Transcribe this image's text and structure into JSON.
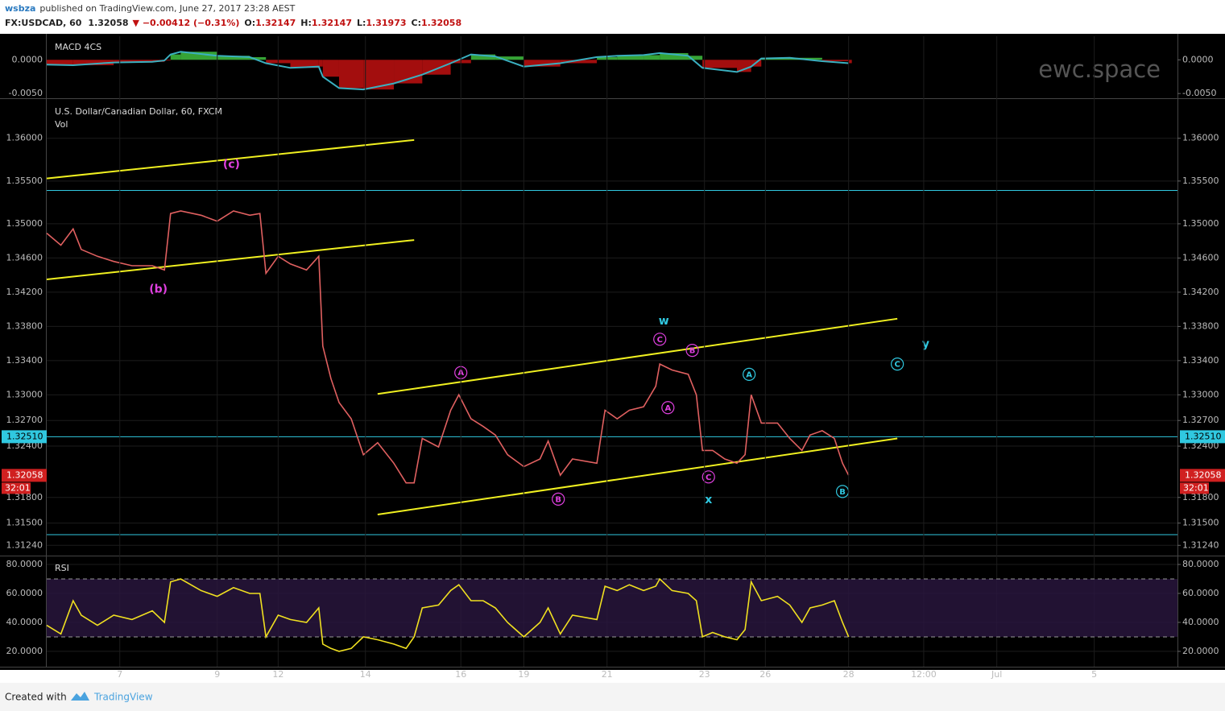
{
  "header": {
    "author": "wsbza",
    "published": "published on TradingView.com, June 27, 2017 23:28 AEST",
    "symbol": "FX:USDCAD, 60",
    "price": "1.32058",
    "change": "▼ −0.00412 (−0.31%)",
    "ohlc": [
      {
        "label": "O:",
        "value": "1.32147"
      },
      {
        "label": "H:",
        "value": "1.32147"
      },
      {
        "label": "L:",
        "value": "1.31973"
      },
      {
        "label": "C:",
        "value": "1.32058"
      }
    ]
  },
  "watermark": "ewc.space",
  "footer": {
    "text": "Created with",
    "brand": "TradingView"
  },
  "chart_data": [
    {
      "type": "bar",
      "title": "MACD 4CS",
      "xlim": [
        0,
        557
      ],
      "ylim": [
        -0.0057,
        0.0035
      ],
      "yticks": [
        {
          "value": 0,
          "label": "0.0000"
        },
        {
          "value": -0.005,
          "label": "-0.0050"
        }
      ],
      "x": [
        0,
        13,
        33,
        52,
        58,
        61,
        66,
        84,
        100,
        108,
        120,
        134,
        136,
        144,
        156,
        171,
        185,
        199,
        209,
        221,
        235,
        253,
        271,
        281,
        294,
        302,
        316,
        323,
        340,
        347,
        352,
        366,
        382,
        395
      ],
      "values": [
        -0.0007,
        -0.0008,
        -0.0004,
        -0.0003,
        -0.0001,
        0.0008,
        0.0012,
        0.0006,
        0.0004,
        -0.0005,
        -0.0012,
        -0.001,
        -0.0025,
        -0.0042,
        -0.0044,
        -0.0035,
        -0.0022,
        -0.0005,
        0.0008,
        0.0005,
        -0.001,
        -0.0005,
        0.0004,
        0.0006,
        0.0007,
        0.001,
        0.0006,
        -0.0012,
        -0.0018,
        -0.001,
        0.0002,
        0.0003,
        -0.0002,
        -0.0005
      ],
      "colors": {
        "up": "#3fbf3f",
        "down": "#c01010",
        "line": "#3ab0c0"
      }
    },
    {
      "type": "line",
      "title": "U.S. Dollar/Canadian Dollar, 60, FXCM",
      "subtitle": "Vol",
      "color": "#e06060",
      "xlim": [
        0,
        557
      ],
      "ylim": [
        1.3112,
        1.3644
      ],
      "grid": true,
      "yticks": [
        {
          "value": 1.36,
          "label": "1.36000"
        },
        {
          "value": 1.355,
          "label": "1.35500"
        },
        {
          "value": 1.35,
          "label": "1.35000"
        },
        {
          "value": 1.346,
          "label": "1.34600"
        },
        {
          "value": 1.342,
          "label": "1.34200"
        },
        {
          "value": 1.338,
          "label": "1.33800"
        },
        {
          "value": 1.334,
          "label": "1.33400"
        },
        {
          "value": 1.33,
          "label": "1.33000"
        },
        {
          "value": 1.327,
          "label": "1.32700"
        },
        {
          "value": 1.324,
          "label": "1.32400"
        },
        {
          "value": 1.318,
          "label": "1.31800"
        },
        {
          "value": 1.315,
          "label": "1.31500"
        },
        {
          "value": 1.3124,
          "label": "1.31240"
        }
      ],
      "x": [
        0,
        7,
        13,
        17,
        25,
        33,
        42,
        52,
        58,
        61,
        66,
        76,
        84,
        92,
        100,
        105,
        108,
        114,
        120,
        128,
        134,
        136,
        140,
        144,
        150,
        156,
        163,
        171,
        177,
        181,
        185,
        193,
        199,
        203,
        209,
        215,
        221,
        227,
        235,
        243,
        247,
        253,
        259,
        271,
        275,
        281,
        287,
        294,
        300,
        302,
        308,
        316,
        320,
        323,
        328,
        334,
        340,
        344,
        347,
        352,
        360,
        366,
        372,
        376,
        382,
        388,
        392,
        395
      ],
      "values": [
        1.3489,
        1.3475,
        1.3494,
        1.347,
        1.3462,
        1.3456,
        1.3451,
        1.3451,
        1.3446,
        1.3512,
        1.3515,
        1.351,
        1.3503,
        1.3515,
        1.351,
        1.3512,
        1.3442,
        1.3462,
        1.3453,
        1.3446,
        1.3462,
        1.3357,
        1.3319,
        1.3291,
        1.3272,
        1.323,
        1.3244,
        1.322,
        1.3197,
        1.3197,
        1.3249,
        1.3239,
        1.3282,
        1.33,
        1.3272,
        1.3263,
        1.3253,
        1.323,
        1.3216,
        1.3225,
        1.3246,
        1.3206,
        1.3225,
        1.322,
        1.3282,
        1.3272,
        1.3282,
        1.3286,
        1.331,
        1.3336,
        1.3329,
        1.3324,
        1.33,
        1.3235,
        1.3235,
        1.3225,
        1.322,
        1.323,
        1.33,
        1.3267,
        1.3267,
        1.3249,
        1.3235,
        1.3253,
        1.3258,
        1.3249,
        1.322,
        1.3206
      ],
      "trendlines": [
        {
          "x": [
            0,
            181
          ],
          "y": [
            1.3553,
            1.3598
          ]
        },
        {
          "x": [
            0,
            181
          ],
          "y": [
            1.3435,
            1.3481
          ]
        },
        {
          "x": [
            163,
            419
          ],
          "y": [
            1.3301,
            1.3389
          ]
        },
        {
          "x": [
            163,
            419
          ],
          "y": [
            1.316,
            1.3249
          ]
        }
      ],
      "trendline_color": "#f0f020",
      "hlines": [
        {
          "value": 1.3539
        },
        {
          "value": 1.3251,
          "label": "1.32510"
        },
        {
          "value": 1.31365
        }
      ],
      "hline_color": "#30c8e0",
      "last_price": {
        "value": 1.32058,
        "label": "1.32058",
        "countdown": "32:01"
      },
      "annotations": [
        {
          "text": "(c)",
          "x": 91,
          "y": 1.3569,
          "color": "#e040e0"
        },
        {
          "text": "(b)",
          "x": 55,
          "y": 1.3423,
          "color": "#e040e0"
        },
        {
          "text": "w",
          "x": 304,
          "y": 1.3386,
          "color": "#30c8e0"
        },
        {
          "text": "y",
          "x": 433,
          "y": 1.3359,
          "color": "#30c8e0"
        },
        {
          "text": "x",
          "x": 326,
          "y": 1.3177,
          "color": "#30c8e0"
        },
        {
          "text": "A",
          "x": 204,
          "y": 1.3326,
          "color": "#e040e0",
          "circled": true
        },
        {
          "text": "C",
          "x": 302,
          "y": 1.3365,
          "color": "#e040e0",
          "circled": true
        },
        {
          "text": "B",
          "x": 318,
          "y": 1.3352,
          "color": "#e040e0",
          "circled": true
        },
        {
          "text": "A",
          "x": 306,
          "y": 1.3285,
          "color": "#e040e0",
          "circled": true
        },
        {
          "text": "B",
          "x": 252,
          "y": 1.3178,
          "color": "#e040e0",
          "circled": true
        },
        {
          "text": "C",
          "x": 326,
          "y": 1.3204,
          "color": "#e040e0",
          "circled": true
        },
        {
          "text": "A",
          "x": 346,
          "y": 1.3324,
          "color": "#30c8e0",
          "circled": true
        },
        {
          "text": "C",
          "x": 419,
          "y": 1.3336,
          "color": "#30c8e0",
          "circled": true
        },
        {
          "text": "B",
          "x": 392,
          "y": 1.3187,
          "color": "#30c8e0",
          "circled": true
        }
      ]
    },
    {
      "type": "line",
      "title": "RSI",
      "color": "#f0e020",
      "xlim": [
        0,
        557
      ],
      "ylim": [
        9.4,
        85
      ],
      "bands": [
        30,
        70
      ],
      "grid": true,
      "yticks": [
        {
          "value": 80,
          "label": "80.0000"
        },
        {
          "value": 60,
          "label": "60.0000"
        },
        {
          "value": 40,
          "label": "40.0000"
        },
        {
          "value": 20,
          "label": "20.0000"
        }
      ],
      "xticks": [
        {
          "value": 36,
          "label": "7"
        },
        {
          "value": 84,
          "label": "9"
        },
        {
          "value": 114,
          "label": "12"
        },
        {
          "value": 157,
          "label": "14"
        },
        {
          "value": 204,
          "label": "16"
        },
        {
          "value": 235,
          "label": "19"
        },
        {
          "value": 276,
          "label": "21"
        },
        {
          "value": 324,
          "label": "23"
        },
        {
          "value": 354,
          "label": "26"
        },
        {
          "value": 395,
          "label": "28"
        },
        {
          "value": 432,
          "label": "12:00"
        },
        {
          "value": 468,
          "label": "Jul"
        },
        {
          "value": 516,
          "label": "5"
        }
      ],
      "x": [
        0,
        7,
        13,
        17,
        25,
        33,
        42,
        52,
        58,
        61,
        66,
        76,
        84,
        92,
        100,
        105,
        108,
        114,
        120,
        128,
        134,
        136,
        140,
        144,
        150,
        156,
        163,
        171,
        177,
        181,
        185,
        193,
        199,
        203,
        209,
        215,
        221,
        227,
        235,
        243,
        247,
        253,
        259,
        271,
        275,
        281,
        287,
        294,
        300,
        302,
        308,
        316,
        320,
        323,
        328,
        334,
        340,
        344,
        347,
        352,
        360,
        366,
        372,
        376,
        382,
        388,
        392,
        395
      ],
      "values": [
        38,
        32,
        55,
        45,
        38,
        45,
        42,
        48,
        40,
        68,
        70,
        62,
        58,
        64,
        60,
        60,
        30,
        45,
        42,
        40,
        50,
        25,
        22,
        20,
        22,
        30,
        28,
        25,
        22,
        30,
        50,
        52,
        62,
        66,
        55,
        55,
        50,
        40,
        30,
        40,
        50,
        32,
        45,
        42,
        65,
        62,
        66,
        62,
        65,
        70,
        62,
        60,
        55,
        30,
        33,
        30,
        28,
        35,
        68,
        55,
        58,
        52,
        40,
        50,
        52,
        55,
        40,
        30
      ]
    }
  ]
}
